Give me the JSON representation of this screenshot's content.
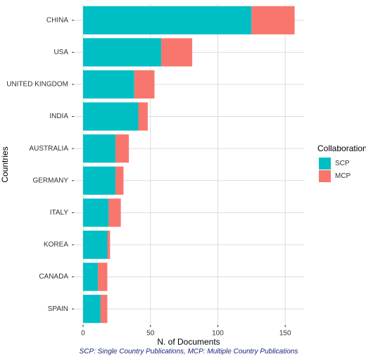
{
  "chart_data": {
    "type": "hbar_stacked",
    "categories": [
      "CHINA",
      "USA",
      "UNITED KINGDOM",
      "INDIA",
      "AUSTRALIA",
      "GERMANY",
      "ITALY",
      "KOREA",
      "CANADA",
      "SPAIN"
    ],
    "series": [
      {
        "name": "SCP",
        "color": "#00bfc4",
        "values": [
          125,
          58,
          38,
          41,
          24,
          24,
          19,
          18,
          11,
          13
        ]
      },
      {
        "name": "MCP",
        "color": "#f8766d",
        "values": [
          32,
          23,
          15,
          7,
          10,
          6,
          9,
          2,
          7,
          5
        ]
      }
    ],
    "x_label": "N. of Documents",
    "y_label": "Countries",
    "legend_title": "Collaboration",
    "caption": "SCP: Single Country Publications, MCP: Multiple Country Publications",
    "xlim": [
      -6.8,
      164
    ],
    "xticks": [
      0,
      50,
      100,
      150
    ],
    "grid": true
  }
}
